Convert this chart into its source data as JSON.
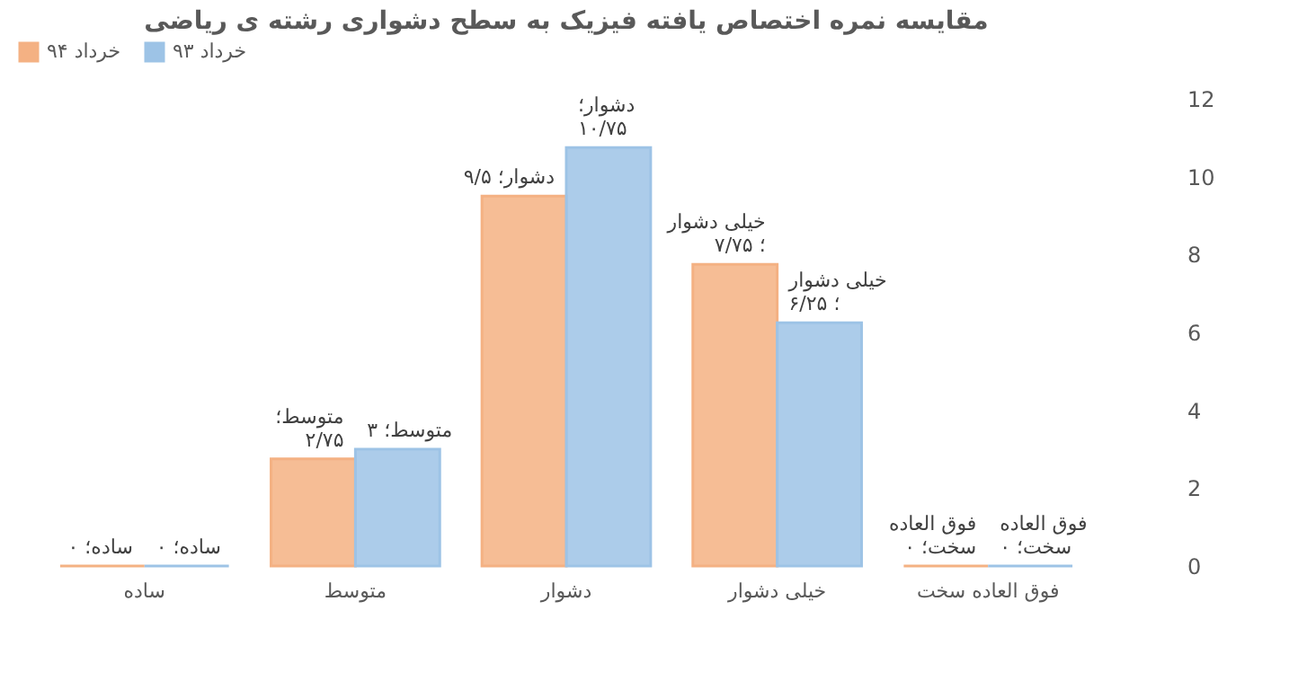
{
  "chart_data": {
    "type": "bar",
    "title": "مقایسه نمره اختصاص یافته فیزیک به سطح دشواری رشته ی ریاضی",
    "categories": [
      "ساده",
      "متوسط",
      "دشوار",
      "خیلی دشوار",
      "فوق العاده سخت"
    ],
    "series": [
      {
        "name": "خرداد ۹۴",
        "color": "#f4b183",
        "values": [
          0,
          2.75,
          9.5,
          7.75,
          0
        ],
        "value_labels": [
          "ساده؛ ۰",
          "متوسط؛ ۲/۷۵",
          "دشوار؛ ۹/۵",
          "خیلی دشوار ؛ ۷/۷۵",
          "فوق العاده سخت؛ ۰"
        ]
      },
      {
        "name": "خرداد ۹۳",
        "color": "#9dc3e6",
        "values": [
          0,
          3,
          10.75,
          6.25,
          0
        ],
        "value_labels": [
          "ساده؛ ۰",
          "متوسط؛ ۳",
          "دشوار؛ ۱۰/۷۵",
          "خیلی دشوار ؛ ۶/۲۵",
          "فوق العاده سخت؛ ۰"
        ]
      }
    ],
    "ylim": [
      0,
      12
    ],
    "yticks": [
      0,
      2,
      4,
      6,
      8,
      10,
      12
    ],
    "legend": "top"
  }
}
